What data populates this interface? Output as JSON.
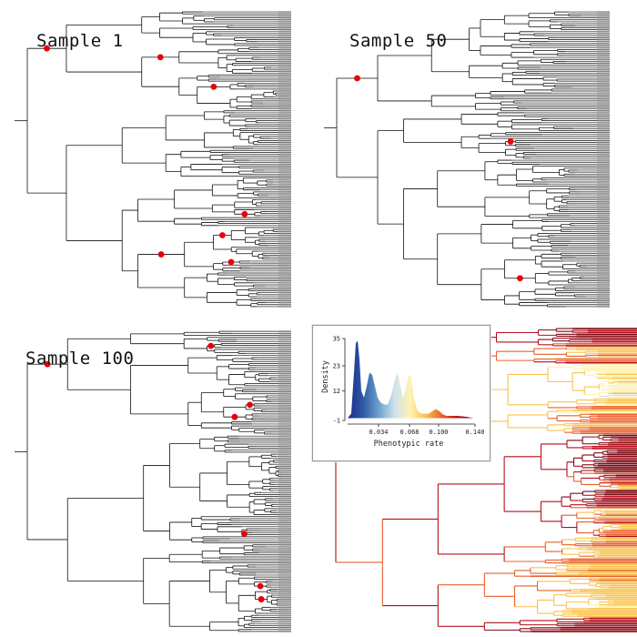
{
  "panels": [
    {
      "title": "Sample 1",
      "seed": 11,
      "shift_count": 7
    },
    {
      "title": "Sample 50",
      "seed": 29,
      "shift_count": 3
    },
    {
      "title": "Sample 100",
      "seed": 53,
      "shift_count": 8
    }
  ],
  "colors": {
    "branch": "#111111",
    "tip_fill": "#9a9a9a",
    "shift_marker": "#e8000b",
    "rate_gradient": [
      "#1a2a8a",
      "#2f5aa6",
      "#6fa3cc",
      "#cfe3ee",
      "#fff2b0",
      "#f9c24c",
      "#e8602c",
      "#b3101c",
      "#7a0a14"
    ]
  },
  "chart_data": {
    "type": "area",
    "title": "",
    "xlabel": "Phenotypic rate",
    "ylabel": "Density",
    "xlim": [
      0.0,
      0.14
    ],
    "ylim": [
      -1,
      35
    ],
    "x_ticks": [
      "0.034",
      "0.068",
      "0.100",
      "0.140"
    ],
    "y_ticks": [
      "35",
      "23",
      "12",
      "-1"
    ],
    "x": [
      0.0,
      0.004,
      0.007,
      0.009,
      0.011,
      0.013,
      0.015,
      0.018,
      0.021,
      0.024,
      0.027,
      0.03,
      0.033,
      0.036,
      0.04,
      0.044,
      0.048,
      0.052,
      0.055,
      0.058,
      0.061,
      0.064,
      0.067,
      0.07,
      0.073,
      0.077,
      0.081,
      0.085,
      0.089,
      0.093,
      0.097,
      0.101,
      0.105,
      0.109,
      0.114,
      0.12,
      0.126,
      0.132,
      0.138
    ],
    "y": [
      0,
      2,
      20,
      33,
      34,
      26,
      12,
      9,
      14,
      20,
      19,
      14,
      9,
      7,
      6,
      6,
      10,
      17,
      20,
      14,
      9,
      13,
      19,
      18,
      8,
      3,
      2,
      2,
      2,
      3,
      4,
      3,
      1.5,
      1,
      1,
      1,
      0.8,
      0.5,
      0
    ]
  }
}
